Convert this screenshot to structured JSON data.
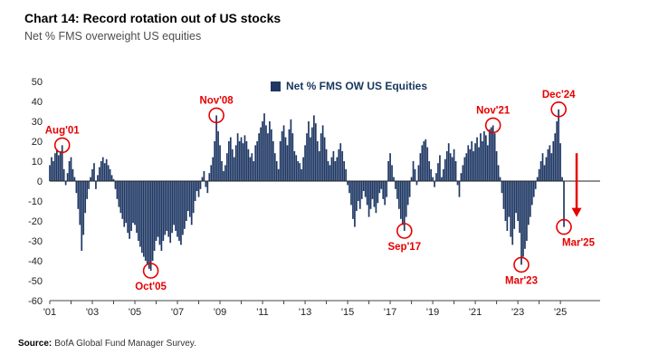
{
  "header": {
    "title": "Chart 14: Record rotation out of US stocks",
    "subtitle": "Net % FMS overweight US equities"
  },
  "legend": {
    "label": "Net % FMS OW US Equities"
  },
  "source": {
    "label": "Source:",
    "text": "BofA Global Fund Manager Survey."
  },
  "colors": {
    "bar": "#1f3864",
    "annotation": "#e60000",
    "axis": "#444444",
    "tick_text": "#222222"
  },
  "chart_data": {
    "type": "bar",
    "title": "Chart 14: Record rotation out of US stocks",
    "ylabel": "Net % FMS overweight US equities",
    "ylim": [
      -60,
      50
    ],
    "ytick_step": 10,
    "x_start": "2001-01",
    "x_end": "2025-03",
    "x_tick_labels": [
      "'01",
      "'03",
      "'05",
      "'07",
      "'09",
      "'11",
      "'13",
      "'15",
      "'17",
      "'19",
      "'21",
      "'23",
      "'25"
    ],
    "bar_color": "#1f3864",
    "values": [
      8,
      12,
      10,
      14,
      16,
      13,
      15,
      18,
      6,
      -2,
      4,
      10,
      12,
      6,
      2,
      -6,
      -14,
      -22,
      -35,
      -27,
      -16,
      -9,
      -4,
      2,
      6,
      9,
      -4,
      3,
      7,
      10,
      12,
      9,
      11,
      8,
      6,
      3,
      1,
      -4,
      -9,
      -13,
      -16,
      -19,
      -23,
      -21,
      -26,
      -29,
      -25,
      -21,
      -22,
      -26,
      -30,
      -33,
      -36,
      -38,
      -40,
      -42,
      -44,
      -45,
      -40,
      -35,
      -30,
      -28,
      -32,
      -35,
      -30,
      -27,
      -25,
      -28,
      -31,
      -26,
      -22,
      -25,
      -28,
      -30,
      -32,
      -27,
      -24,
      -20,
      -15,
      -18,
      -22,
      -16,
      -10,
      -5,
      -8,
      -4,
      2,
      5,
      -3,
      -6,
      4,
      8,
      12,
      20,
      33,
      25,
      18,
      10,
      5,
      8,
      14,
      20,
      22,
      16,
      12,
      18,
      24,
      20,
      22,
      19,
      23,
      20,
      16,
      12,
      14,
      10,
      18,
      20,
      24,
      27,
      30,
      34,
      28,
      24,
      30,
      26,
      20,
      14,
      10,
      6,
      20,
      25,
      28,
      22,
      18,
      26,
      31,
      24,
      15,
      13,
      10,
      9,
      6,
      12,
      18,
      24,
      30,
      22,
      27,
      33,
      29,
      20,
      15,
      24,
      28,
      22,
      16,
      10,
      8,
      12,
      15,
      10,
      12,
      16,
      19,
      15,
      10,
      6,
      -2,
      -6,
      -12,
      -19,
      -23,
      -15,
      -10,
      -14,
      -9,
      -5,
      -8,
      -12,
      -18,
      -14,
      -9,
      -13,
      -16,
      -11,
      -6,
      -4,
      -9,
      -12,
      -8,
      10,
      14,
      8,
      2,
      -4,
      -9,
      -14,
      -19,
      -22,
      -25,
      -18,
      -12,
      -8,
      2,
      10,
      6,
      -2,
      8,
      14,
      18,
      20,
      21,
      17,
      10,
      6,
      2,
      -3,
      4,
      9,
      13,
      2,
      6,
      11,
      15,
      19,
      14,
      12,
      16,
      10,
      -2,
      -8,
      4,
      8,
      12,
      14,
      18,
      16,
      20,
      15,
      19,
      22,
      17,
      24,
      20,
      25,
      23,
      18,
      26,
      27,
      28,
      24,
      15,
      8,
      2,
      -6,
      -14,
      -20,
      -25,
      -18,
      -28,
      -32,
      -24,
      -16,
      -20,
      -26,
      -42,
      -38,
      -34,
      -30,
      -22,
      -18,
      -12,
      -8,
      -4,
      2,
      6,
      10,
      14,
      8,
      12,
      16,
      18,
      14,
      20,
      24,
      30,
      36,
      19,
      2,
      -23
    ],
    "annotations": [
      {
        "label": "Aug'01",
        "index": 7,
        "value": 18,
        "pos": "above",
        "dx": 0
      },
      {
        "label": "Oct'05",
        "index": 57,
        "value": -45,
        "pos": "below",
        "dx": 0
      },
      {
        "label": "Nov'08",
        "index": 94,
        "value": 33,
        "pos": "above",
        "dx": 0
      },
      {
        "label": "Sep'17",
        "index": 200,
        "value": -25,
        "pos": "below",
        "dx": 0
      },
      {
        "label": "Nov'21",
        "index": 250,
        "value": 28,
        "pos": "above",
        "dx": 0
      },
      {
        "label": "Mar'23",
        "index": 266,
        "value": -42,
        "pos": "below",
        "dx": 0
      },
      {
        "label": "Dec'24",
        "index": 287,
        "value": 36,
        "pos": "above",
        "dx": 0
      },
      {
        "label": "Mar'25",
        "index": 290,
        "value": -23,
        "pos": "below",
        "dx": 16
      }
    ],
    "arrow": {
      "index": 290,
      "dx": 14,
      "from_value": 14,
      "to_value": -18
    },
    "legend": {
      "label": "Net % FMS OW US Equities",
      "position": "top-center"
    },
    "grid": false
  }
}
